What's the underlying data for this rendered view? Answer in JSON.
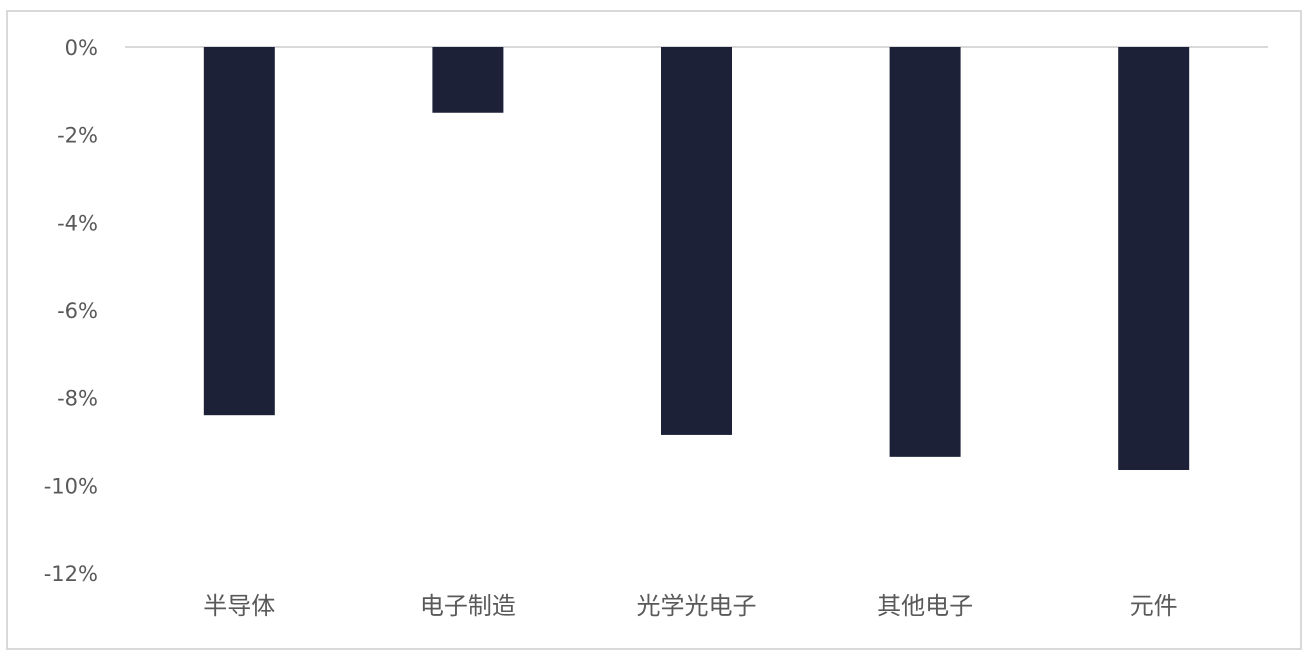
{
  "chart_data": {
    "type": "bar",
    "title": "",
    "xlabel": "",
    "ylabel": "",
    "categories": [
      "半导体",
      "电子制造",
      "光学光电子",
      "其他电子",
      "元件"
    ],
    "values": [
      -8.4,
      -1.5,
      -8.85,
      -9.35,
      -9.65
    ],
    "ylim": [
      -12,
      0
    ],
    "yticks": [
      0,
      -2,
      -4,
      -6,
      -8,
      -10,
      -12
    ],
    "ytick_labels": [
      "0%",
      "-2%",
      "-4%",
      "-6%",
      "-8%",
      "-10%",
      "-12%"
    ],
    "bar_color": "#1c2138",
    "grid": false,
    "legend": "none"
  }
}
